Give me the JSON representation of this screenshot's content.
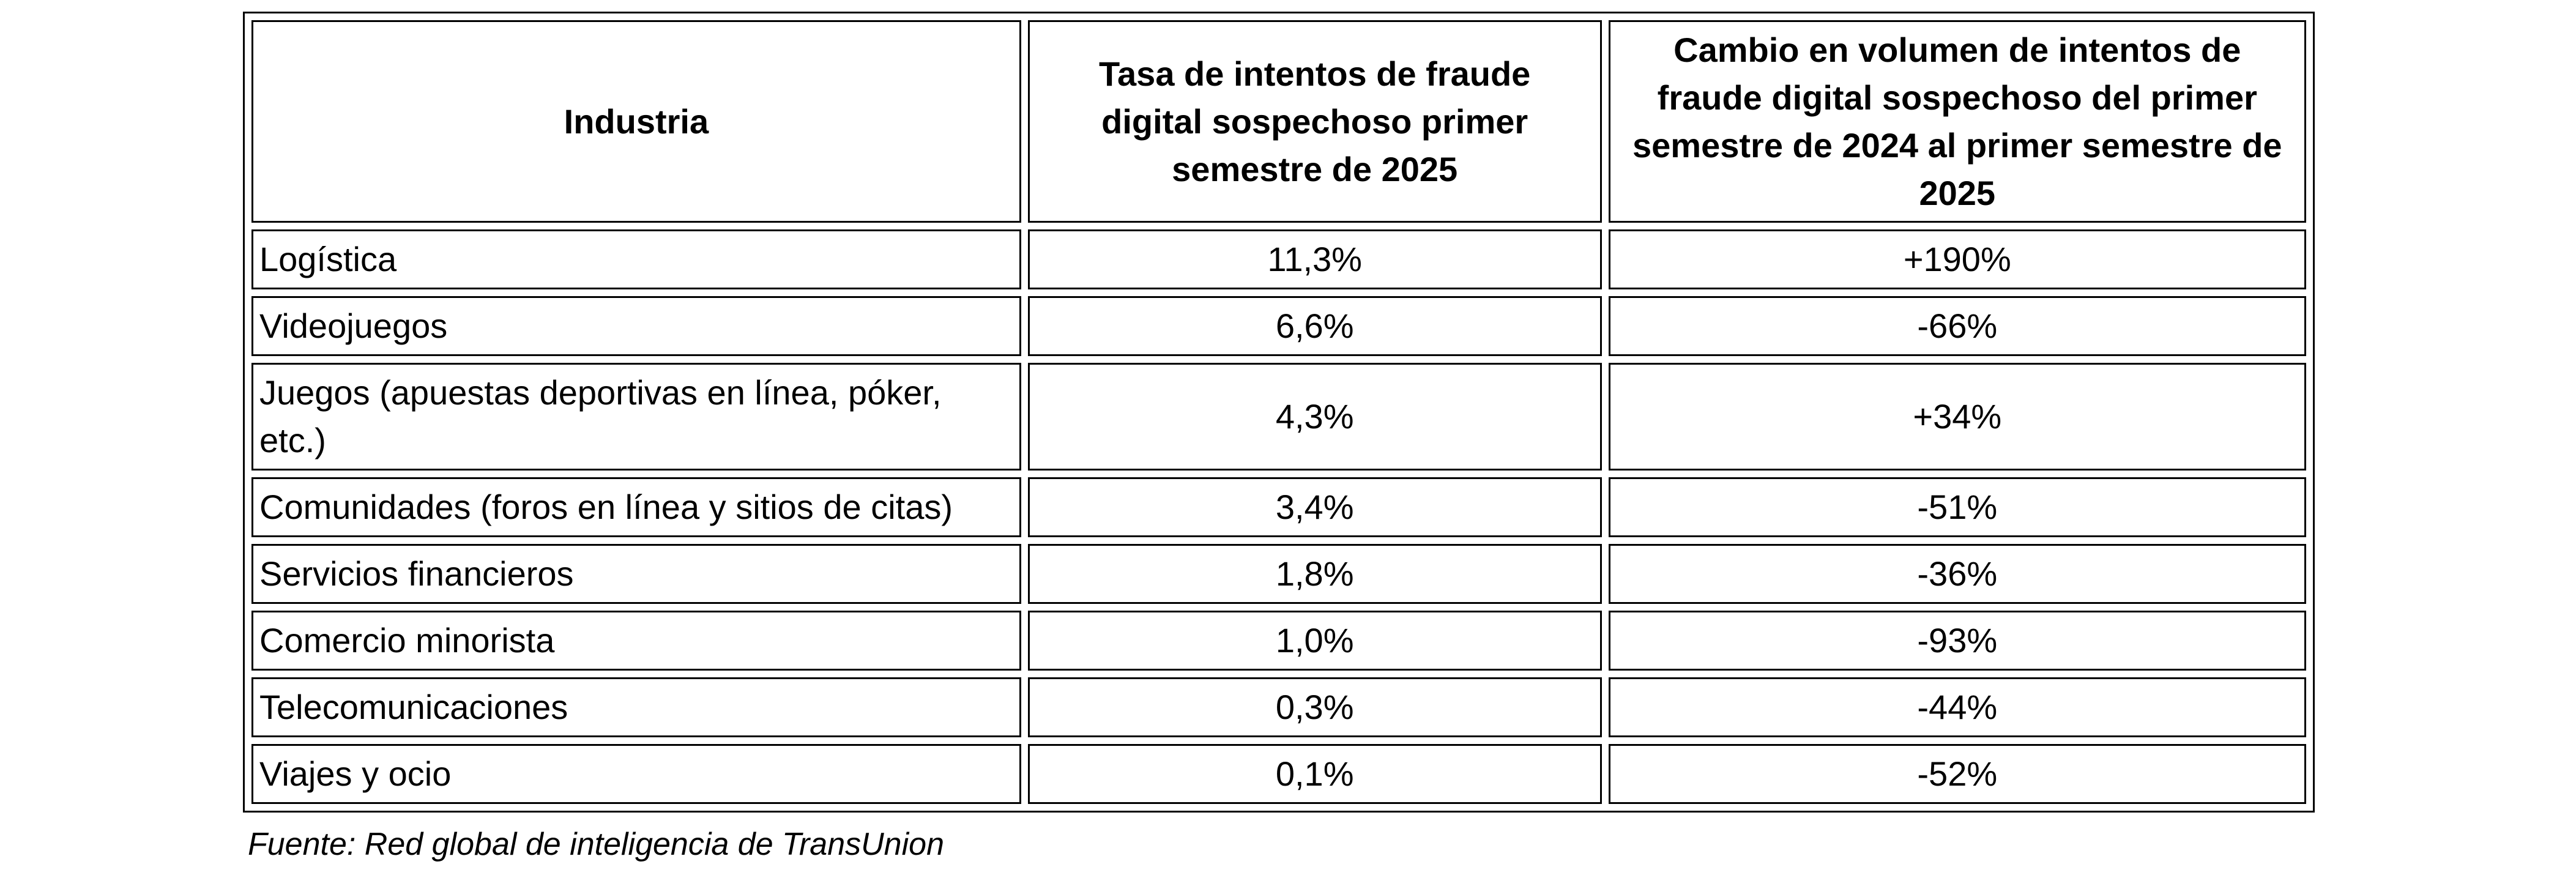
{
  "table": {
    "headers": [
      "Industria",
      "Tasa de intentos de fraude digital sospechoso primer semestre de 2025",
      "Cambio en volumen de intentos de fraude digital sospechoso del primer semestre de 2024 al primer semestre de 2025"
    ],
    "rows": [
      {
        "industry": "Logística",
        "rate": "11,3%",
        "change": "+190%"
      },
      {
        "industry": "Videojuegos",
        "rate": "6,6%",
        "change": "-66%"
      },
      {
        "industry": "Juegos (apuestas deportivas en línea, póker, etc.)",
        "rate": "4,3%",
        "change": "+34%"
      },
      {
        "industry": "Comunidades (foros en línea y sitios de citas)",
        "rate": "3,4%",
        "change": "-51%"
      },
      {
        "industry": "Servicios financieros",
        "rate": "1,8%",
        "change": "-36%"
      },
      {
        "industry": "Comercio minorista",
        "rate": "1,0%",
        "change": "-93%"
      },
      {
        "industry": "Telecomunicaciones",
        "rate": "0,3%",
        "change": "-44%"
      },
      {
        "industry": "Viajes y ocio",
        "rate": "0,1%",
        "change": "-52%"
      }
    ]
  },
  "source": "Fuente: Red global de inteligencia de TransUnion"
}
